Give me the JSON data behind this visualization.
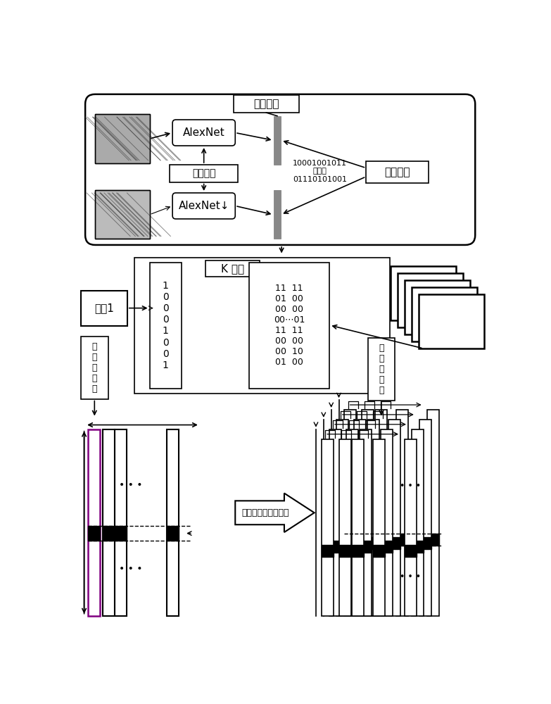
{
  "bg_color": "#ffffff",
  "label_深度哈希": "深度哈希",
  "label_AlexNet1": "AlexNet",
  "label_AlexNet2": "AlexNet↓",
  "label_权值共享": "权值共享",
  "label_哈希码": "10001001011\n哈希码\n01110101001",
  "label_成对训练": "成对训练",
  "label_K近邻": "K 近邻",
  "label_图片1": "图片1",
  "label_子块重排序1": "子\n块\n重\n排\n序",
  "label_子块重排序2": "子\n块\n重\n排\n序",
  "hash_code1": "1\n0\n0\n0\n1\n0\n0\n1",
  "hash_code2": "11  11\n01  00\n00  00\n00⋯01\n11  11\n00  00\n00  10\n01  00",
  "label_映射": "子块之间的快速映射"
}
